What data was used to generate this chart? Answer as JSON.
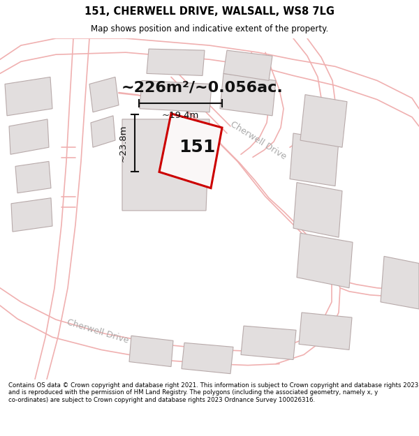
{
  "title_line1": "151, CHERWELL DRIVE, WALSALL, WS8 7LG",
  "title_line2": "Map shows position and indicative extent of the property.",
  "footer_text": "Contains OS data © Crown copyright and database right 2021. This information is subject to Crown copyright and database rights 2023 and is reproduced with the permission of HM Land Registry. The polygons (including the associated geometry, namely x, y co-ordinates) are subject to Crown copyright and database rights 2023 Ordnance Survey 100026316.",
  "area_label": "~226m²/~0.056ac.",
  "property_number": "151",
  "dim_width": "~19.4m",
  "dim_height": "~23.8m",
  "road_label_bl": "Cherwell Drive",
  "road_label_br": "Cherwell Drive",
  "map_bg": "#f9f6f6",
  "building_fill": "#e2dede",
  "building_edge": "#b8aaaa",
  "road_line_color": "#f0b0b0",
  "property_outline": "#cc0000",
  "dim_color": "#111111"
}
